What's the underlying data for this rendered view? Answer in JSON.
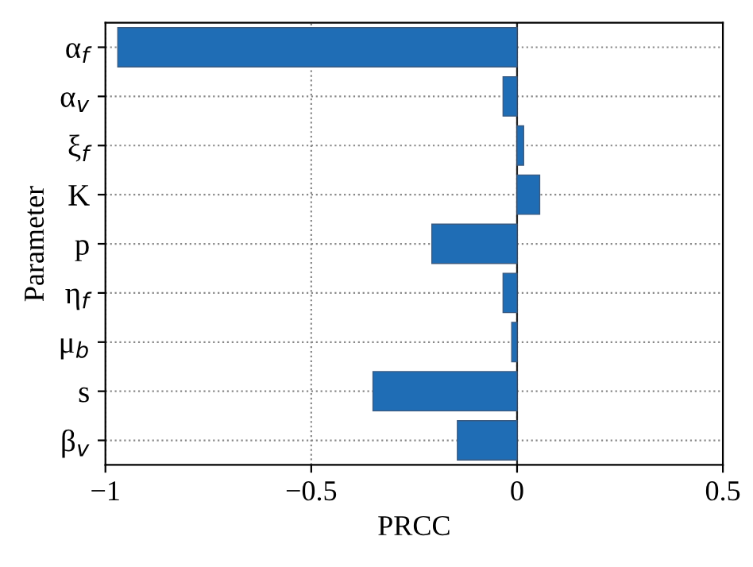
{
  "chart_data": {
    "type": "bar",
    "orientation": "horizontal",
    "xlabel": "PRCC",
    "ylabel": "Parameter",
    "categories": [
      "α$_{f}$",
      "α$_{v}$",
      "ξ$_{f}$",
      "K",
      "p",
      "η$_{f}$",
      "μ$_{b}$",
      "s",
      "β$_{v}$"
    ],
    "values": [
      -0.97,
      -0.034,
      0.016,
      0.055,
      -0.207,
      -0.034,
      -0.013,
      -0.35,
      -0.145
    ],
    "color": "#1f6db5",
    "xlim": [
      -1,
      0.5
    ],
    "xticks": [
      {
        "value": -1,
        "label": "−1"
      },
      {
        "value": -0.5,
        "label": "−0.5"
      },
      0,
      0.5
    ],
    "grid": true
  }
}
